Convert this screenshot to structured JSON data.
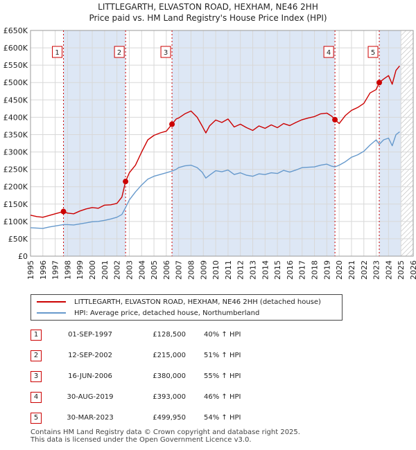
{
  "title_line1": "LITTLEGARTH, ELVASTON ROAD, HEXHAM, NE46 2HH",
  "title_line2": "Price paid vs. HM Land Registry's House Price Index (HPI)",
  "colors": {
    "property": "#cc0000",
    "hpi": "#6699cc",
    "shade": "#dde7f5",
    "marker": "#cc0000"
  },
  "chart_data": {
    "type": "line",
    "title": "LITTLEGARTH, ELVASTON ROAD, HEXHAM, NE46 2HH",
    "subtitle": "Price paid vs. HM Land Registry's House Price Index (HPI)",
    "xlabel": "",
    "ylabel": "",
    "xlim": [
      1995,
      2026
    ],
    "ylim": [
      0,
      650000
    ],
    "x_ticks": [
      "1995",
      "1996",
      "1997",
      "1998",
      "1999",
      "2000",
      "2001",
      "2002",
      "2003",
      "2004",
      "2005",
      "2006",
      "2007",
      "2008",
      "2009",
      "2010",
      "2011",
      "2012",
      "2013",
      "2014",
      "2015",
      "2016",
      "2017",
      "2018",
      "2019",
      "2020",
      "2021",
      "2022",
      "2023",
      "2024",
      "2025",
      "2026"
    ],
    "y_ticks": [
      {
        "value": 0,
        "label": "£0"
      },
      {
        "value": 50000,
        "label": "£50K"
      },
      {
        "value": 100000,
        "label": "£100K"
      },
      {
        "value": 150000,
        "label": "£150K"
      },
      {
        "value": 200000,
        "label": "£200K"
      },
      {
        "value": 250000,
        "label": "£250K"
      },
      {
        "value": 300000,
        "label": "£300K"
      },
      {
        "value": 350000,
        "label": "£350K"
      },
      {
        "value": 400000,
        "label": "£400K"
      },
      {
        "value": 450000,
        "label": "£450K"
      },
      {
        "value": 500000,
        "label": "£500K"
      },
      {
        "value": 550000,
        "label": "£550K"
      },
      {
        "value": 600000,
        "label": "£600K"
      },
      {
        "value": 650000,
        "label": "£650K"
      }
    ],
    "grid": true,
    "shaded_periods": [
      [
        1997.67,
        2002.7
      ],
      [
        2006.46,
        2019.66
      ],
      [
        2023.25,
        2025.0
      ]
    ],
    "hatched_region": [
      2025.0,
      2026.0
    ],
    "series": [
      {
        "name": "LITTLEGARTH, ELVASTON ROAD, HEXHAM, NE46 2HH (detached house)",
        "color": "#cc0000",
        "x": [
          1995.0,
          1995.5,
          1996.0,
          1996.5,
          1997.0,
          1997.67,
          1998.0,
          1998.5,
          1999.0,
          1999.5,
          2000.0,
          2000.5,
          2001.0,
          2001.5,
          2002.0,
          2002.4,
          2002.7,
          2003.0,
          2003.5,
          2004.0,
          2004.5,
          2005.0,
          2005.5,
          2006.0,
          2006.46,
          2006.8,
          2007.0,
          2007.5,
          2008.0,
          2008.5,
          2008.9,
          2009.2,
          2009.5,
          2010.0,
          2010.5,
          2011.0,
          2011.5,
          2012.0,
          2012.5,
          2013.0,
          2013.5,
          2014.0,
          2014.5,
          2015.0,
          2015.5,
          2016.0,
          2016.5,
          2017.0,
          2017.5,
          2018.0,
          2018.5,
          2019.0,
          2019.4,
          2019.66,
          2020.0,
          2020.5,
          2021.0,
          2021.5,
          2022.0,
          2022.5,
          2023.0,
          2023.25,
          2023.6,
          2024.0,
          2024.3,
          2024.6,
          2024.9
        ],
        "values": [
          118000,
          114000,
          112000,
          117000,
          122000,
          128500,
          124000,
          122000,
          130000,
          136000,
          140000,
          138000,
          147000,
          148000,
          152000,
          170000,
          215000,
          240000,
          262000,
          300000,
          335000,
          348000,
          355000,
          360000,
          380000,
          395000,
          398000,
          410000,
          418000,
          400000,
          375000,
          355000,
          375000,
          392000,
          385000,
          395000,
          372000,
          380000,
          370000,
          362000,
          375000,
          368000,
          378000,
          370000,
          382000,
          376000,
          385000,
          393000,
          398000,
          402000,
          410000,
          412000,
          403000,
          393000,
          382000,
          405000,
          420000,
          428000,
          440000,
          470000,
          480000,
          499950,
          510000,
          520000,
          495000,
          535000,
          548000
        ]
      },
      {
        "name": "HPI: Average price, detached house, Northumberland",
        "color": "#6699cc",
        "x": [
          1995.0,
          1995.5,
          1996.0,
          1996.5,
          1997.0,
          1997.67,
          1998.0,
          1998.5,
          1999.0,
          1999.5,
          2000.0,
          2000.5,
          2001.0,
          2001.5,
          2002.0,
          2002.4,
          2002.7,
          2003.0,
          2003.5,
          2004.0,
          2004.5,
          2005.0,
          2005.5,
          2006.0,
          2006.46,
          2006.8,
          2007.0,
          2007.5,
          2008.0,
          2008.5,
          2008.9,
          2009.2,
          2009.5,
          2010.0,
          2010.5,
          2011.0,
          2011.5,
          2012.0,
          2012.5,
          2013.0,
          2013.5,
          2014.0,
          2014.5,
          2015.0,
          2015.5,
          2016.0,
          2016.5,
          2017.0,
          2017.5,
          2018.0,
          2018.5,
          2019.0,
          2019.4,
          2019.66,
          2020.0,
          2020.5,
          2021.0,
          2021.5,
          2022.0,
          2022.5,
          2023.0,
          2023.25,
          2023.6,
          2024.0,
          2024.3,
          2024.6,
          2024.9
        ],
        "values": [
          82000,
          81000,
          80000,
          84000,
          87000,
          91000,
          91000,
          90000,
          93000,
          96000,
          99000,
          100000,
          103000,
          107000,
          112000,
          120000,
          140000,
          162000,
          185000,
          205000,
          222000,
          230000,
          235000,
          240000,
          245000,
          250000,
          255000,
          260000,
          262000,
          255000,
          242000,
          225000,
          233000,
          246000,
          243000,
          248000,
          235000,
          240000,
          233000,
          230000,
          237000,
          235000,
          240000,
          238000,
          247000,
          242000,
          248000,
          255000,
          256000,
          257000,
          262000,
          265000,
          259000,
          257000,
          262000,
          272000,
          285000,
          292000,
          302000,
          320000,
          335000,
          322000,
          335000,
          340000,
          318000,
          350000,
          358000
        ]
      }
    ],
    "sales": [
      {
        "label": "1",
        "x": 1997.67,
        "value": 128500
      },
      {
        "label": "2",
        "x": 2002.7,
        "value": 215000
      },
      {
        "label": "3",
        "x": 2006.46,
        "value": 380000
      },
      {
        "label": "4",
        "x": 2019.66,
        "value": 393000
      },
      {
        "label": "5",
        "x": 2023.25,
        "value": 499950
      }
    ]
  },
  "legend": {
    "property": "LITTLEGARTH, ELVASTON ROAD, HEXHAM, NE46 2HH (detached house)",
    "hpi": "HPI: Average price, detached house, Northumberland"
  },
  "transactions": [
    {
      "num": "1",
      "date": "01-SEP-1997",
      "price": "£128,500",
      "hpi": "40% ↑ HPI"
    },
    {
      "num": "2",
      "date": "12-SEP-2002",
      "price": "£215,000",
      "hpi": "51% ↑ HPI"
    },
    {
      "num": "3",
      "date": "16-JUN-2006",
      "price": "£380,000",
      "hpi": "55% ↑ HPI"
    },
    {
      "num": "4",
      "date": "30-AUG-2019",
      "price": "£393,000",
      "hpi": "46% ↑ HPI"
    },
    {
      "num": "5",
      "date": "30-MAR-2023",
      "price": "£499,950",
      "hpi": "54% ↑ HPI"
    }
  ],
  "footer_line1": "Contains HM Land Registry data © Crown copyright and database right 2025.",
  "footer_line2": "This data is licensed under the Open Government Licence v3.0."
}
